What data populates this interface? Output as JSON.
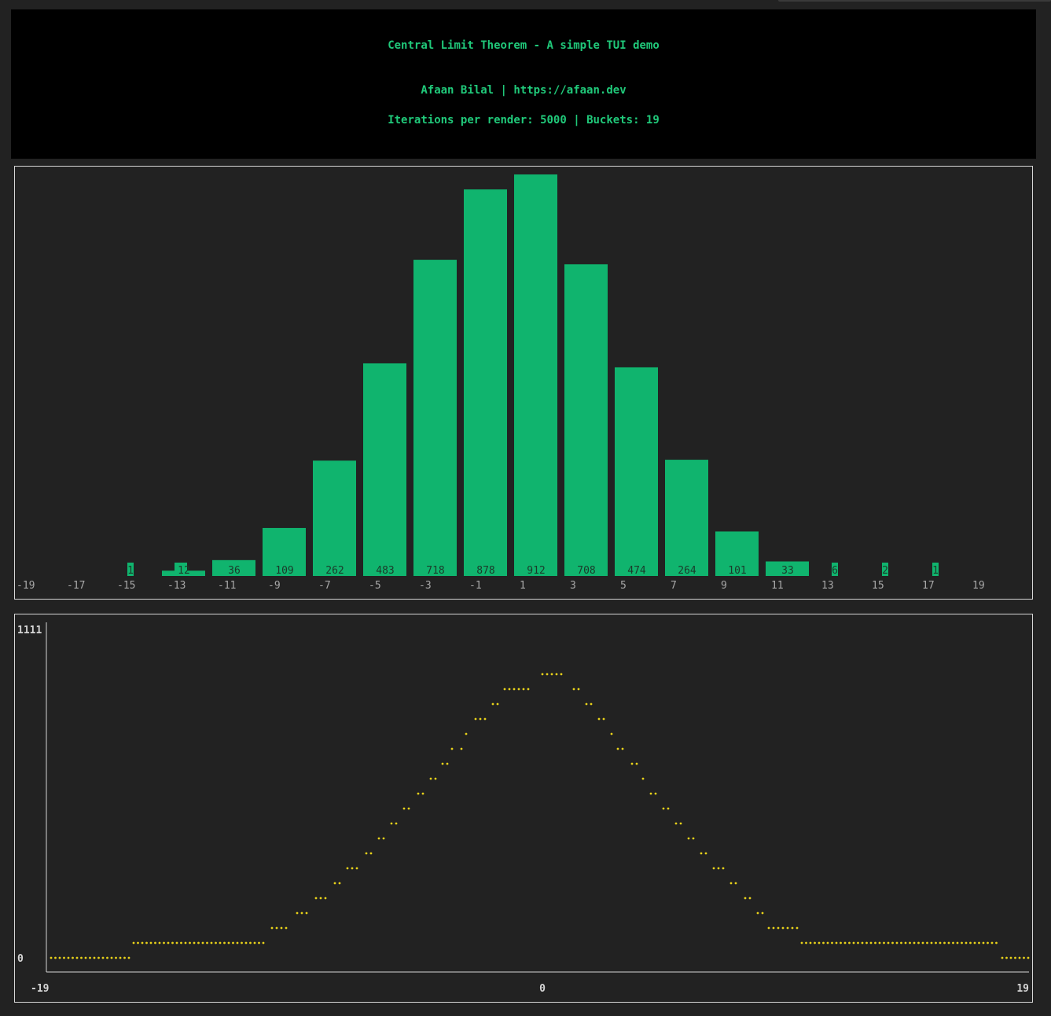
{
  "header": {
    "title": "Central Limit Theorem - A simple TUI demo",
    "author": "Afaan Bilal | https://afaan.dev",
    "stats": "Iterations per render: 5000 | Buckets: 19"
  },
  "colors": {
    "background": "#222222",
    "header_background": "#000000",
    "accent_green": "#10b46e",
    "header_text": "#20c97a",
    "line_color": "#e8d21a",
    "axis": "#d6d6d6",
    "tick_text": "#a8a8a8"
  },
  "chart_data": [
    {
      "type": "bar",
      "categories": [
        -15,
        -13,
        -11,
        -9,
        -7,
        -5,
        -3,
        -1,
        1,
        3,
        5,
        7,
        9,
        11,
        13,
        15,
        17
      ],
      "values": [
        1,
        12,
        36,
        109,
        262,
        483,
        718,
        878,
        912,
        708,
        474,
        264,
        101,
        33,
        6,
        2,
        1
      ],
      "x_ticks": [
        "-19",
        "-17",
        "-15",
        "-13",
        "-11",
        "-9",
        "-7",
        "-5",
        "-3",
        "-1",
        "1",
        "3",
        "5",
        "7",
        "9",
        "11",
        "13",
        "15",
        "17",
        "19"
      ],
      "ylim": [
        0,
        912
      ],
      "grid": false
    },
    {
      "type": "line",
      "y_ticks": [
        "1111",
        "0"
      ],
      "x_ticks": [
        "-19",
        "0",
        "19"
      ],
      "xlim": [
        -19,
        19
      ],
      "ylim": [
        0,
        1111
      ],
      "marker": "dots",
      "grid": false
    }
  ]
}
